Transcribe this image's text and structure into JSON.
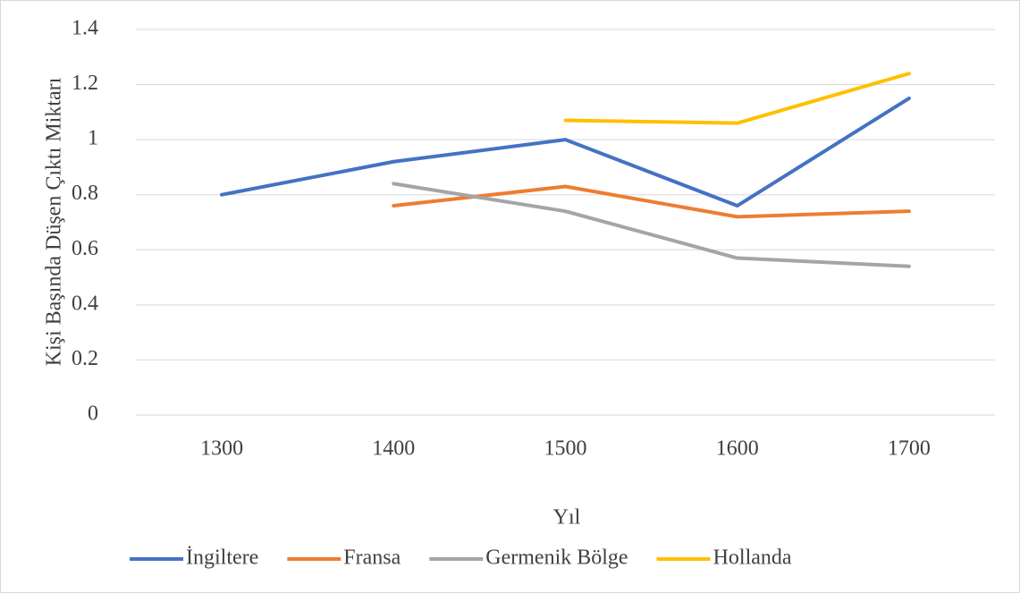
{
  "chart_data": {
    "type": "line",
    "x_label": "Yıl",
    "y_label": "Kişi Başında Düşen Çıktı Miktarı",
    "categories": [
      "1300",
      "1400",
      "1500",
      "1600",
      "1700"
    ],
    "series": [
      {
        "name": "İngiltere",
        "color": "#4472c4",
        "values": [
          0.8,
          0.92,
          1.0,
          0.76,
          1.15
        ]
      },
      {
        "name": "Fransa",
        "color": "#ed7d31",
        "values": [
          null,
          0.76,
          0.83,
          0.72,
          0.74
        ]
      },
      {
        "name": "Germenik Bölge",
        "color": "#a5a5a5",
        "values": [
          null,
          0.84,
          0.74,
          0.57,
          0.54
        ]
      },
      {
        "name": "Hollanda",
        "color": "#ffc000",
        "values": [
          null,
          null,
          1.07,
          1.06,
          1.24
        ]
      }
    ],
    "ylim": [
      0,
      1.4
    ],
    "yticks": [
      0,
      0.2,
      0.4,
      0.6,
      0.8,
      1,
      1.2,
      1.4
    ],
    "grid": true,
    "legend": "bottom"
  }
}
